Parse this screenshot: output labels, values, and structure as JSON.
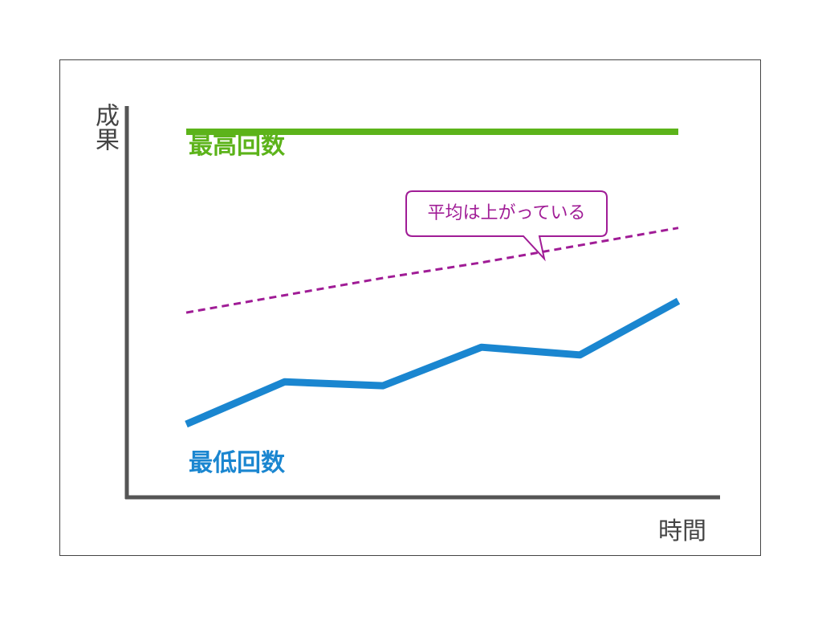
{
  "chart_data": {
    "type": "line",
    "title": "",
    "xlabel": "時間",
    "ylabel": "成果",
    "x": [
      1,
      2,
      3,
      4,
      5,
      6
    ],
    "ylim": [
      0,
      10
    ],
    "grid": false,
    "series": [
      {
        "name": "最高回数",
        "values": [
          9.5,
          9.5,
          9.5,
          9.5,
          9.5,
          9.5
        ],
        "color": "#5cb31a",
        "style": "solid"
      },
      {
        "name": "最低回数",
        "values": [
          1.9,
          3.0,
          2.9,
          3.9,
          3.7,
          5.1
        ],
        "color": "#1a86d0",
        "style": "solid"
      },
      {
        "name": "",
        "values": [
          4.8,
          5.25,
          5.7,
          6.1,
          6.55,
          7.0
        ],
        "color": "#a01c96",
        "style": "dashed"
      }
    ],
    "annotations": [
      {
        "text": "平均は上がっている",
        "color": "#a01c96"
      }
    ],
    "axis_color": "#555555"
  }
}
